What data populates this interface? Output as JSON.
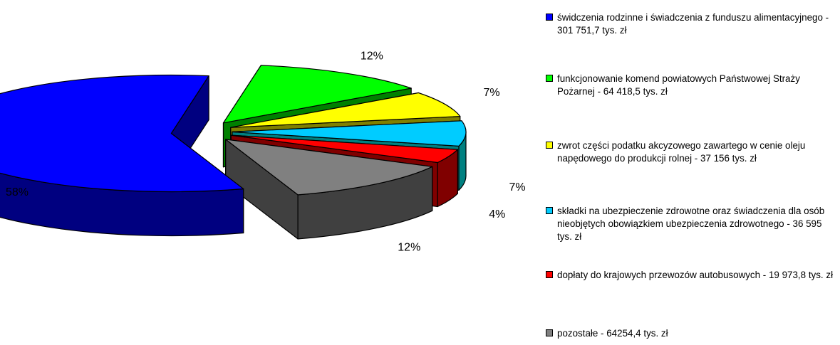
{
  "chart_data": {
    "type": "pie",
    "categories": [
      "świdczenia rodzinne i świadczenia z funduszu alimentacyjnego - 301 751,7 tys. zł",
      "funkcjonowanie komend powiatowych Państwowej Straży Pożarnej - 64 418,5 tys. zł",
      "zwrot części podatku akcyzowego zawartego w cenie oleju napędowego do produkcji rolnej - 37 156 tys. zł",
      "składki na ubezpieczenie zdrowotne oraz świadczenia dla osób nieobjętych obowiązkiem ubezpieczenia zdrowotnego - 36 595 tys. zł",
      "dopłaty do krajowych przewozów autobusowych - 19 973,8 tys. zł",
      "pozostałe - 64254,4 tys. zł"
    ],
    "values": [
      301751.7,
      64418.5,
      37156,
      36595,
      19973.8,
      64254.4
    ],
    "percent_labels": [
      "58%",
      "12%",
      "7%",
      "7%",
      "4%",
      "12%"
    ],
    "colors": [
      "#0000ff",
      "#00ff00",
      "#ffff00",
      "#00ccff",
      "#ff0000",
      "#808080"
    ],
    "side_colors": [
      "#000080",
      "#008000",
      "#808000",
      "#008080",
      "#800000",
      "#404040"
    ],
    "legend_position": "right",
    "exploded": true,
    "three_d": true
  }
}
